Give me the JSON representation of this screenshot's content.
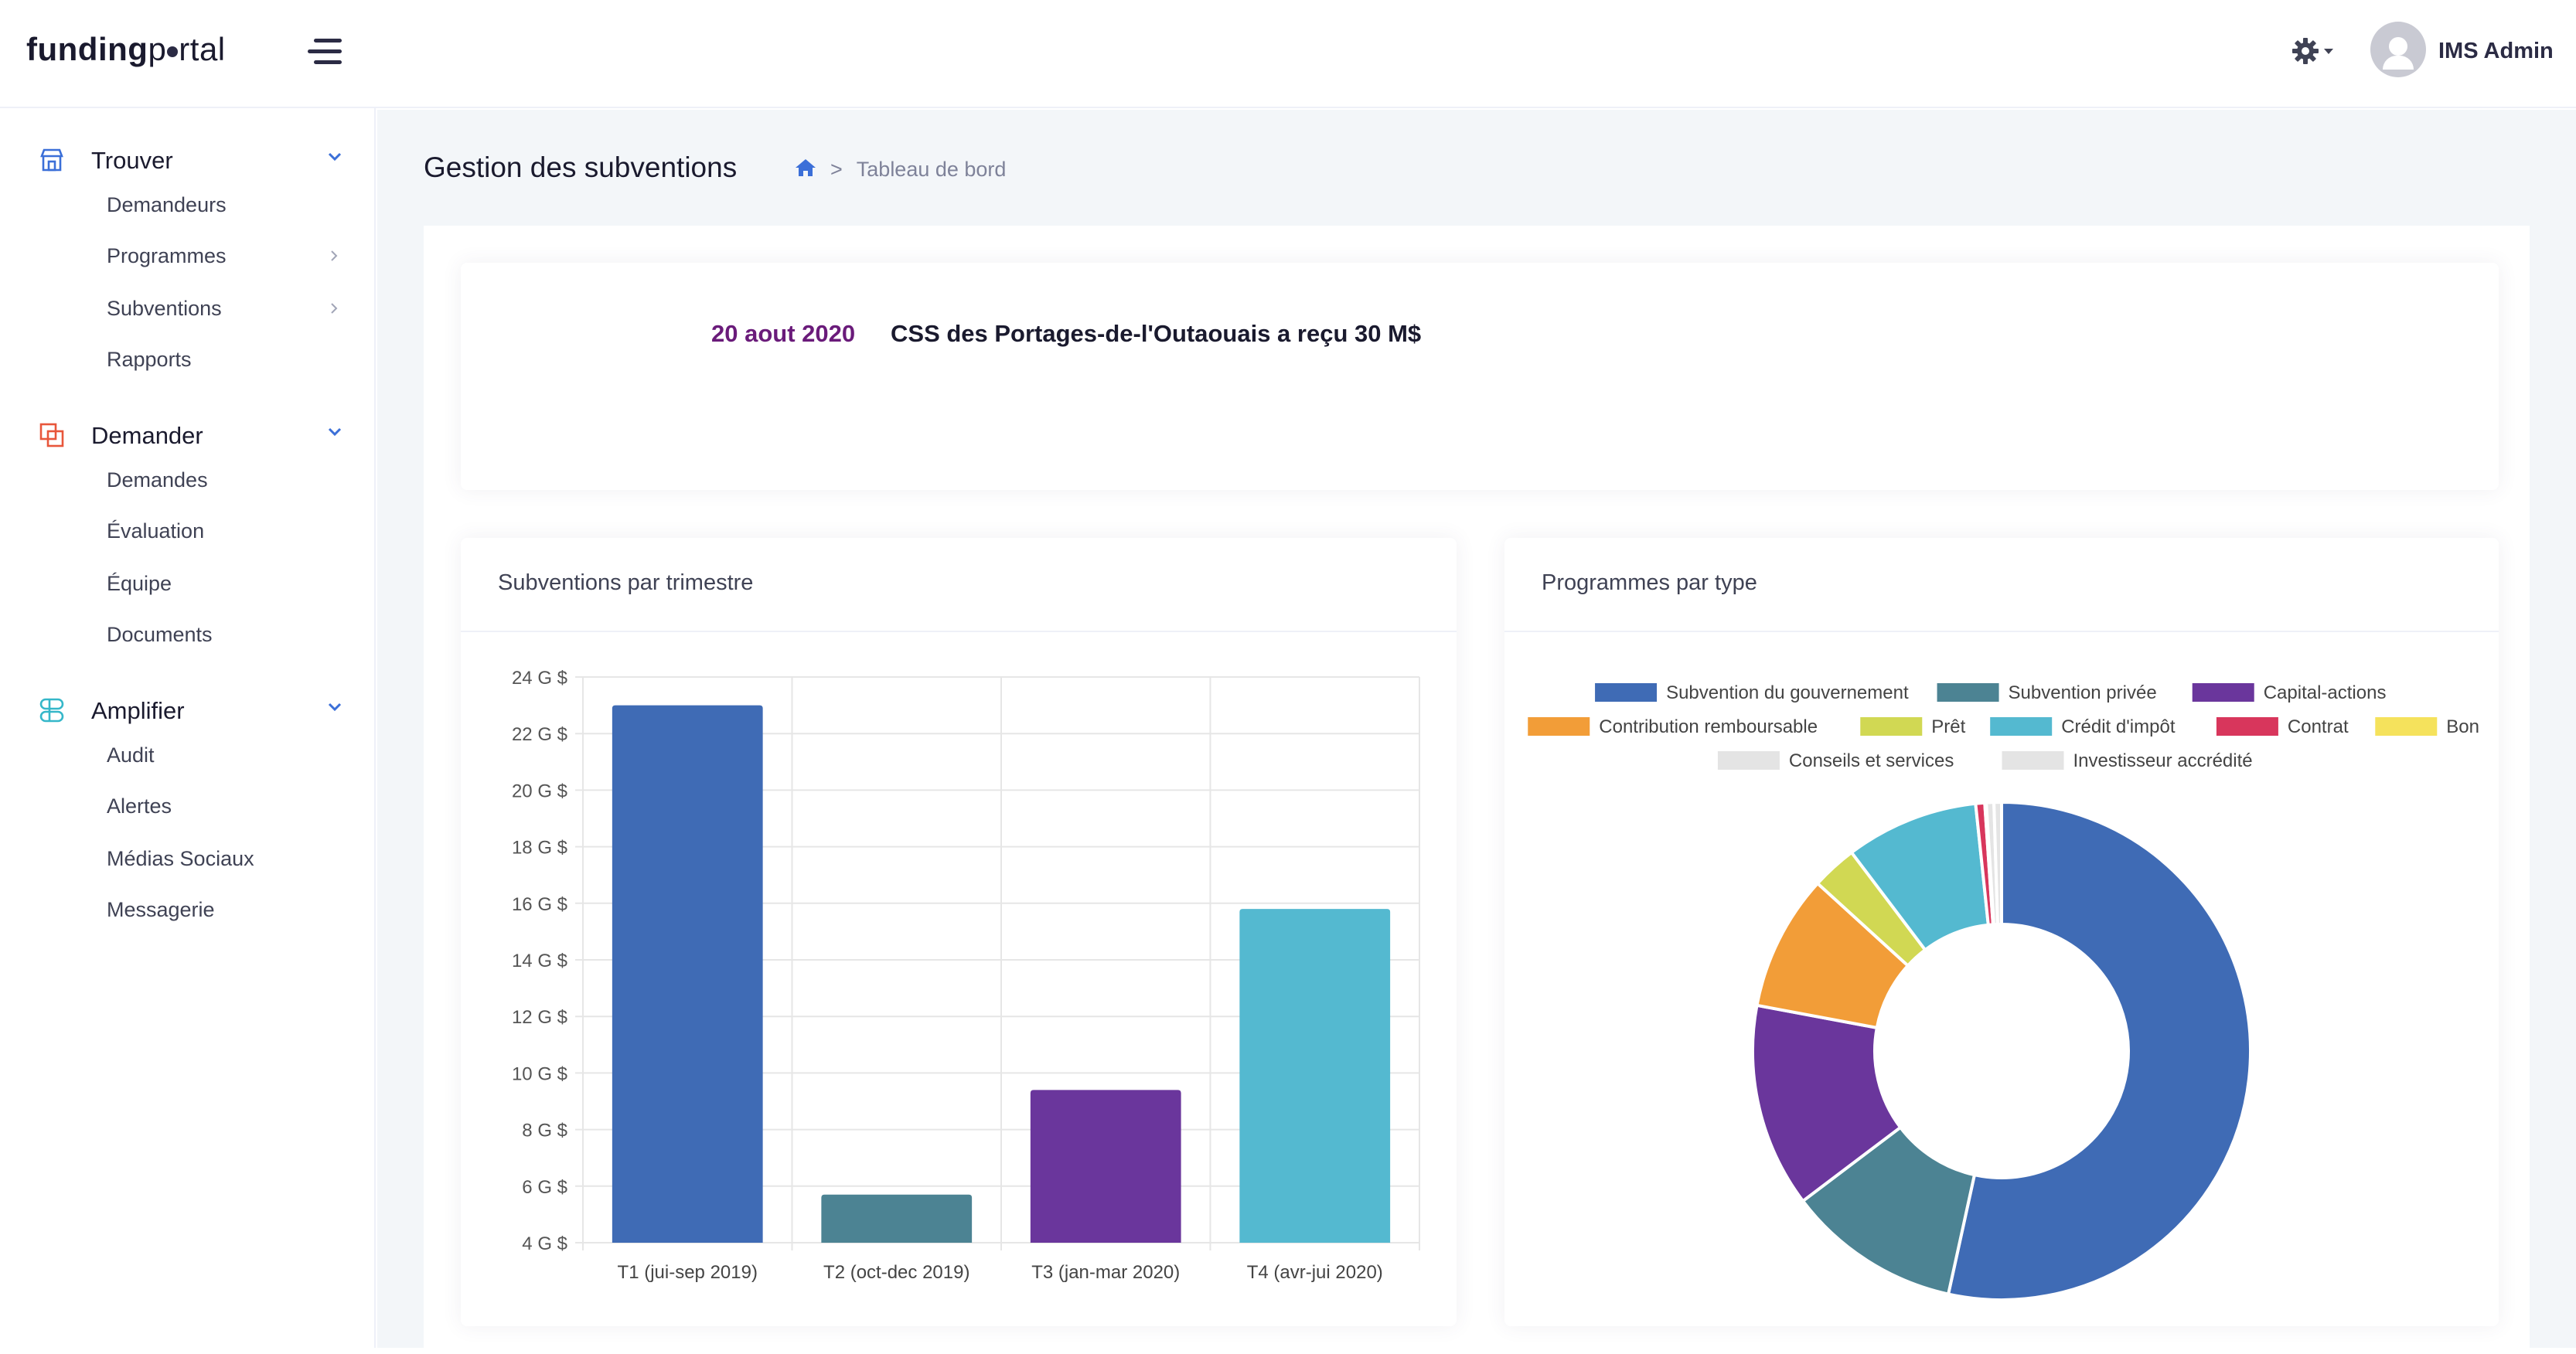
{
  "brand": {
    "bold": "funding",
    "light_a": "p",
    "light_b": "rtal"
  },
  "header": {
    "user_name": "IMS Admin",
    "settings_icon": "gear-icon",
    "menu_icon": "hamburger-icon"
  },
  "sidebar": {
    "sections": [
      {
        "title": "Trouver",
        "icon": "store-icon",
        "color": "#3b6fd8",
        "items": [
          {
            "label": "Demandeurs",
            "arrow": false
          },
          {
            "label": "Programmes",
            "arrow": true
          },
          {
            "label": "Subventions",
            "arrow": true
          },
          {
            "label": "Rapports",
            "arrow": false
          }
        ]
      },
      {
        "title": "Demander",
        "icon": "copy-icon",
        "color": "#e8563b",
        "items": [
          {
            "label": "Demandes"
          },
          {
            "label": "Évaluation"
          },
          {
            "label": "Équipe"
          },
          {
            "label": "Documents"
          }
        ]
      },
      {
        "title": "Amplifier",
        "icon": "layers-icon",
        "color": "#35b7c9",
        "items": [
          {
            "label": "Audit"
          },
          {
            "label": "Alertes"
          },
          {
            "label": "Médias Sociaux"
          },
          {
            "label": "Messagerie"
          }
        ]
      }
    ]
  },
  "page": {
    "title": "Gestion des subventions",
    "breadcrumb_sep": ">",
    "breadcrumb": "Tableau de bord"
  },
  "news": {
    "date": "20 aout 2020",
    "text": "CSS des Portages-de-l'Outaouais a reçu 30 M$"
  },
  "cards": {
    "bar_title": "Subventions par trimestre",
    "pie_title": "Programmes par type"
  },
  "chart_data": [
    {
      "type": "bar",
      "title": "",
      "categories": [
        "T1 (jui-sep 2019)",
        "T2 (oct-dec 2019)",
        "T3 (jan-mar 2020)",
        "T4 (avr-jui 2020)"
      ],
      "values": [
        23,
        5.7,
        9.4,
        15.8
      ],
      "colors": [
        "#3f6bb5",
        "#4c8393",
        "#6a369c",
        "#54b9d0"
      ],
      "ylim": [
        4,
        24
      ],
      "yticks": [
        4,
        6,
        8,
        10,
        12,
        14,
        16,
        18,
        20,
        22,
        24
      ],
      "tick_suffix": " G $",
      "grid": true
    },
    {
      "type": "pie",
      "donut": true,
      "legend_position": "top",
      "labels": [
        "Subvention du gouvernement",
        "Subvention privée",
        "Capital-actions",
        "Contribution remboursable",
        "Prêt",
        "Crédit d'impôt",
        "Contrat",
        "Bon",
        "Conseils et services",
        "Investisseur accrédité"
      ],
      "values": [
        54.5,
        11.5,
        13.5,
        9.0,
        3.0,
        8.8,
        0.6,
        0.1,
        0.5,
        0.5
      ],
      "colors": [
        "#3f6bb5",
        "#4c8393",
        "#6a369c",
        "#f29d38",
        "#d1d853",
        "#54b9d0",
        "#d8365c",
        "#f5e25c",
        "#e4e4e4",
        "#e4e4e4"
      ]
    }
  ]
}
